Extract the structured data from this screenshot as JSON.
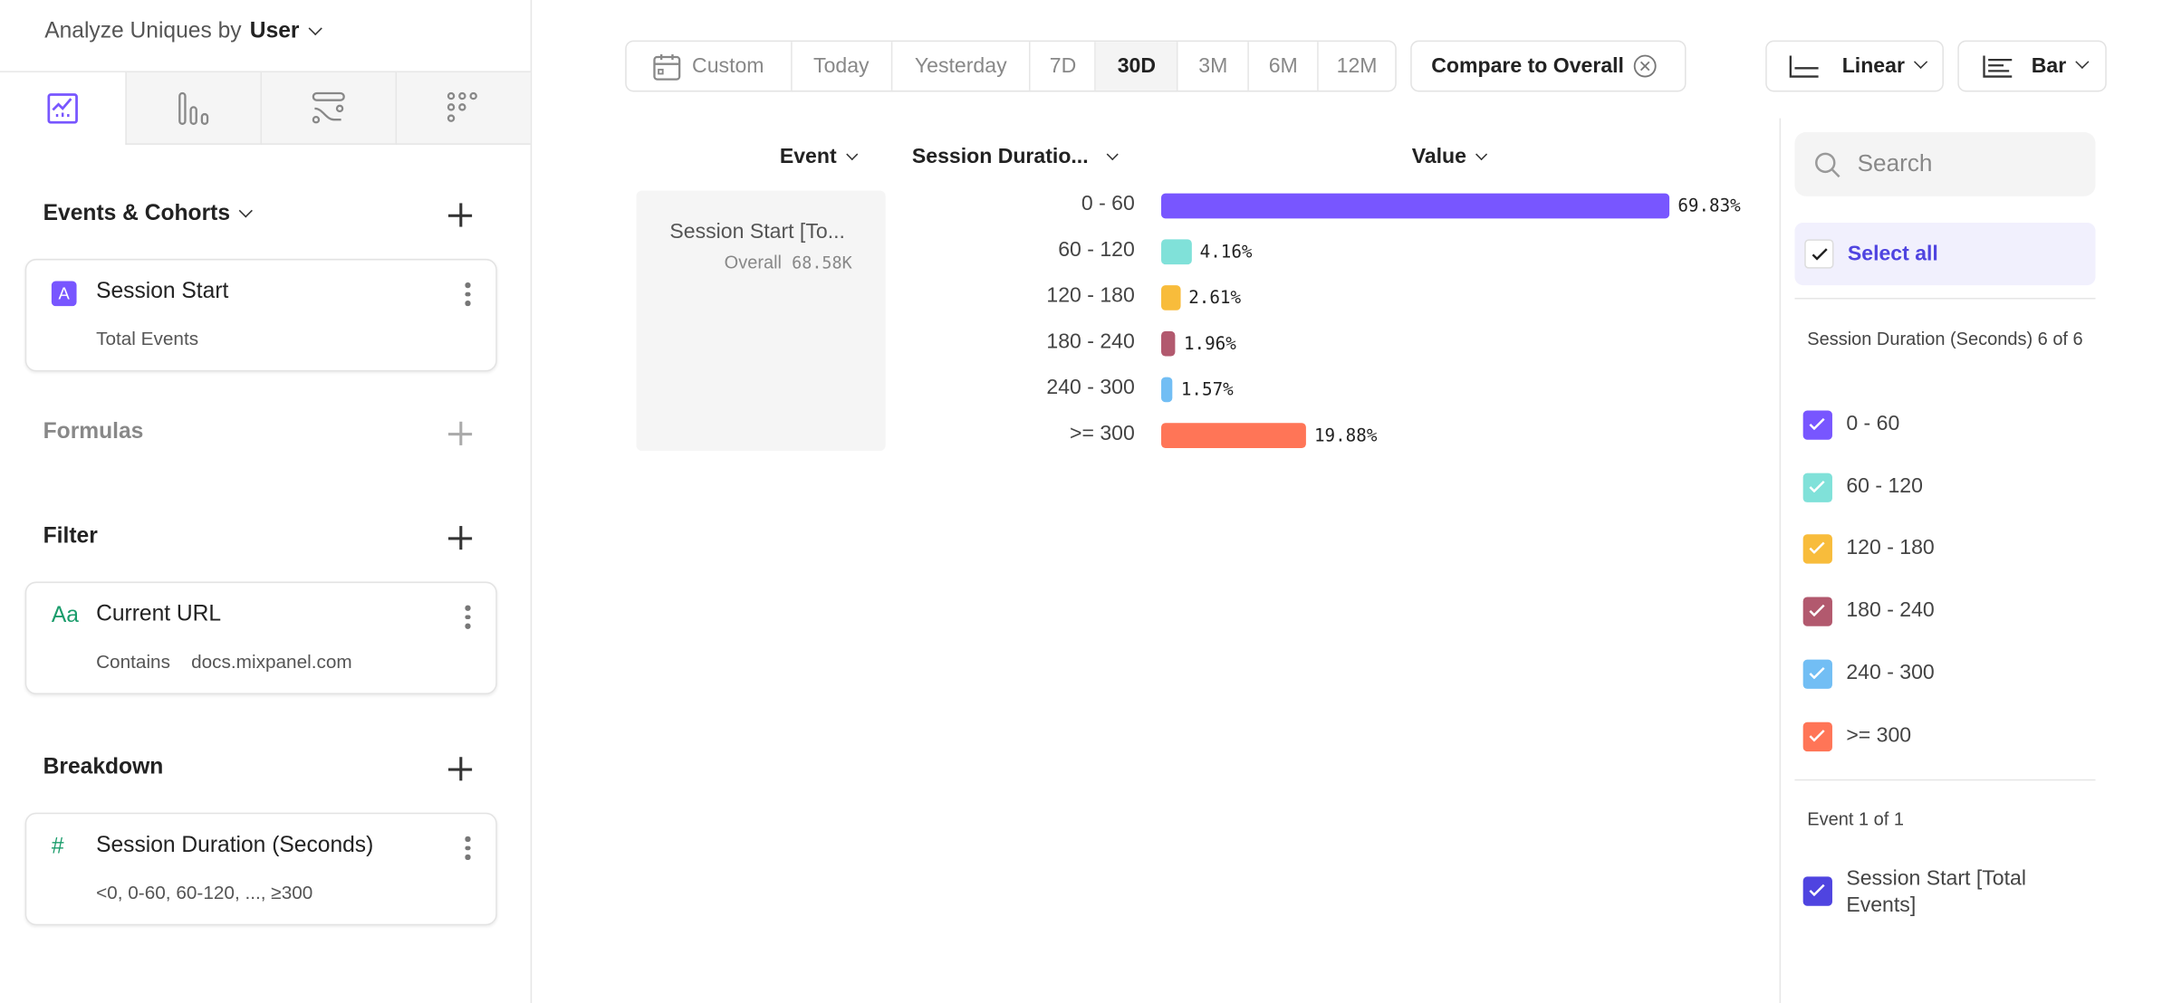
{
  "sidebar": {
    "analyze_label": "Analyze Uniques by",
    "analyze_value": "User",
    "tabs": [
      {
        "icon": "insights-chart-icon",
        "active": true
      },
      {
        "icon": "funnels-bars-icon"
      },
      {
        "icon": "flows-icon"
      },
      {
        "icon": "retention-grid-icon"
      }
    ],
    "events": {
      "title": "Events & Cohorts",
      "items": [
        {
          "badge": "A",
          "name": "Session Start",
          "sub": "Total Events"
        }
      ]
    },
    "formulas": {
      "title": "Formulas"
    },
    "filter": {
      "title": "Filter",
      "items": [
        {
          "icon": "Aa",
          "name": "Current URL",
          "op": "Contains",
          "value": "docs.mixpanel.com"
        }
      ]
    },
    "breakdown": {
      "title": "Breakdown",
      "items": [
        {
          "icon": "#",
          "name": "Session Duration (Seconds)",
          "sub": "<0, 0-60, 60-120, ..., ≥300"
        }
      ]
    }
  },
  "toolbar": {
    "ranges": [
      "Custom",
      "Today",
      "Yesterday",
      "7D",
      "30D",
      "3M",
      "6M",
      "12M"
    ],
    "active_range": "30D",
    "compare": "Compare to Overall",
    "scale": "Linear",
    "chart_type": "Bar"
  },
  "table": {
    "headers": {
      "event": "Event",
      "breakdown": "Session Duratio...",
      "value": "Value"
    },
    "event_name": "Session Start [To...",
    "overall_label": "Overall",
    "overall_value": "68.58K"
  },
  "chart_data": {
    "type": "bar",
    "orientation": "horizontal",
    "categories": [
      "0 - 60",
      "60 - 120",
      "120 - 180",
      "180 - 240",
      "240 - 300",
      ">= 300"
    ],
    "values": [
      69.83,
      4.16,
      2.61,
      1.96,
      1.57,
      19.88
    ],
    "labels": [
      "69.83%",
      "4.16%",
      "2.61%",
      "1.96%",
      "1.57%",
      "19.88%"
    ],
    "colors": [
      "#7856ff",
      "#80e1d9",
      "#f8bc3b",
      "#b2596e",
      "#72bef4",
      "#ff7557"
    ],
    "unit": "%"
  },
  "legend": {
    "search_placeholder": "Search",
    "select_all": "Select all",
    "group_title": "Session Duration (Seconds) 6 of 6",
    "event_title": "Event 1 of 1",
    "event_item": "Session Start [Total Events]",
    "event_color": "#4f44e0"
  }
}
